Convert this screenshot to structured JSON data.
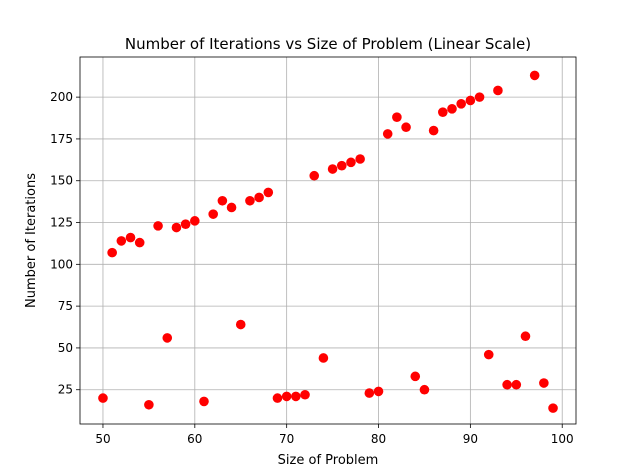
{
  "chart_data": {
    "type": "scatter",
    "title": "Number of Iterations vs Size of Problem (Linear Scale)",
    "xlabel": "Size of Problem",
    "ylabel": "Number of Iterations",
    "xlim": [
      47.5,
      101.5
    ],
    "ylim": [
      4.5,
      224
    ],
    "xticks": [
      50,
      60,
      70,
      80,
      90,
      100
    ],
    "yticks": [
      25,
      50,
      75,
      100,
      125,
      150,
      175,
      200
    ],
    "grid": true,
    "marker_color": "#ff0000",
    "points": [
      {
        "x": 50,
        "y": 20
      },
      {
        "x": 51,
        "y": 107
      },
      {
        "x": 52,
        "y": 114
      },
      {
        "x": 53,
        "y": 116
      },
      {
        "x": 54,
        "y": 113
      },
      {
        "x": 55,
        "y": 16
      },
      {
        "x": 56,
        "y": 123
      },
      {
        "x": 57,
        "y": 56
      },
      {
        "x": 58,
        "y": 122
      },
      {
        "x": 59,
        "y": 124
      },
      {
        "x": 60,
        "y": 126
      },
      {
        "x": 61,
        "y": 18
      },
      {
        "x": 62,
        "y": 130
      },
      {
        "x": 63,
        "y": 138
      },
      {
        "x": 64,
        "y": 134
      },
      {
        "x": 65,
        "y": 64
      },
      {
        "x": 66,
        "y": 138
      },
      {
        "x": 67,
        "y": 140
      },
      {
        "x": 68,
        "y": 143
      },
      {
        "x": 69,
        "y": 20
      },
      {
        "x": 70,
        "y": 21
      },
      {
        "x": 71,
        "y": 21
      },
      {
        "x": 72,
        "y": 22
      },
      {
        "x": 73,
        "y": 153
      },
      {
        "x": 74,
        "y": 44
      },
      {
        "x": 75,
        "y": 157
      },
      {
        "x": 76,
        "y": 159
      },
      {
        "x": 77,
        "y": 161
      },
      {
        "x": 78,
        "y": 163
      },
      {
        "x": 79,
        "y": 23
      },
      {
        "x": 80,
        "y": 24
      },
      {
        "x": 81,
        "y": 178
      },
      {
        "x": 82,
        "y": 188
      },
      {
        "x": 83,
        "y": 182
      },
      {
        "x": 84,
        "y": 33
      },
      {
        "x": 85,
        "y": 25
      },
      {
        "x": 86,
        "y": 180
      },
      {
        "x": 87,
        "y": 191
      },
      {
        "x": 88,
        "y": 193
      },
      {
        "x": 89,
        "y": 196
      },
      {
        "x": 90,
        "y": 198
      },
      {
        "x": 91,
        "y": 200
      },
      {
        "x": 92,
        "y": 46
      },
      {
        "x": 93,
        "y": 204
      },
      {
        "x": 94,
        "y": 28
      },
      {
        "x": 95,
        "y": 28
      },
      {
        "x": 96,
        "y": 57
      },
      {
        "x": 97,
        "y": 213
      },
      {
        "x": 98,
        "y": 29
      },
      {
        "x": 99,
        "y": 14
      }
    ]
  }
}
